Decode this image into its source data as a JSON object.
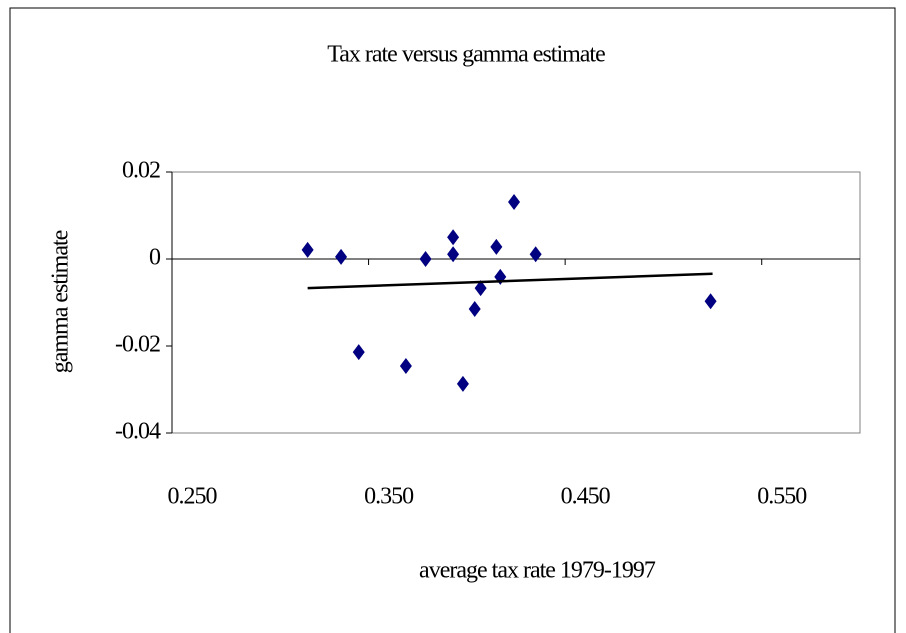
{
  "chart_data": {
    "type": "scatter",
    "title": "Tax rate versus gamma estimate",
    "x_label": "average tax rate 1979-1997",
    "y_label": "gamma estimate",
    "series": [
      {
        "color": "#000080",
        "x": [
          0.319,
          0.336,
          0.345,
          0.369,
          0.379,
          0.393,
          0.393,
          0.398,
          0.404,
          0.407,
          0.415,
          0.417,
          0.424,
          0.435,
          0.524
        ],
        "values": [
          0.0021,
          0.0005,
          -0.0214,
          -0.0246,
          0,
          0.005,
          0.0011,
          -0.0287,
          -0.0115,
          -0.0067,
          0.0028,
          -0.0041,
          0.0131,
          0.0011,
          -0.0097
        ]
      }
    ],
    "trendline": {
      "color": "#000000",
      "x": [
        0.319,
        0.525
      ],
      "values": [
        -0.0067,
        -0.0034
      ]
    },
    "xlim": [
      0.25,
      0.6
    ],
    "ylim": [
      -0.04,
      0.02
    ],
    "xticks": [
      {
        "value": 0.25,
        "label": "0.250"
      },
      {
        "value": 0.35,
        "label": "0.350"
      },
      {
        "value": 0.45,
        "label": "0.450"
      },
      {
        "value": 0.55,
        "label": "0.550"
      }
    ],
    "yticks": [
      -0.04,
      -0.02,
      0,
      0.02
    ],
    "grid": false
  }
}
